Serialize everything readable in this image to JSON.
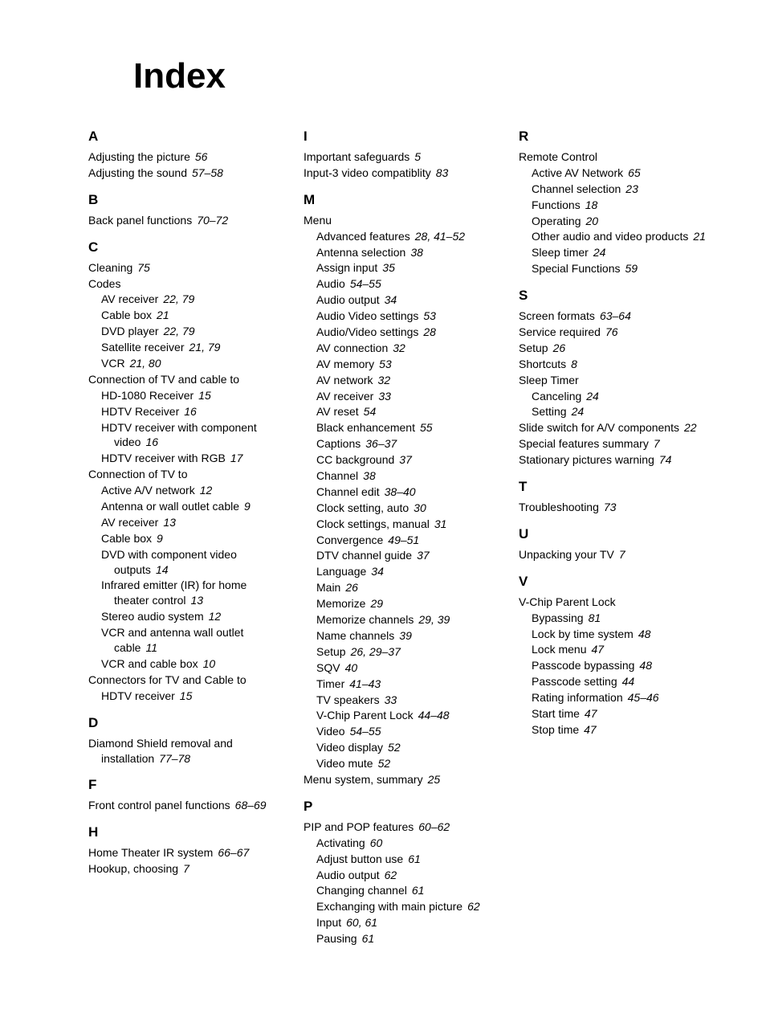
{
  "title": "Index",
  "fontsize_title": 44,
  "fontsize_heading": 17,
  "fontsize_entry": 14,
  "text_color": "#000000",
  "background_color": "#ffffff",
  "columns": [
    {
      "sections": [
        {
          "letter": "A",
          "entries": [
            {
              "level": 0,
              "text": "Adjusting the picture",
              "pages": "56"
            },
            {
              "level": 0,
              "text": "Adjusting the sound",
              "pages": "57–58"
            }
          ]
        },
        {
          "letter": "B",
          "entries": [
            {
              "level": 0,
              "text": "Back panel functions",
              "pages": "70–72"
            }
          ]
        },
        {
          "letter": "C",
          "entries": [
            {
              "level": 0,
              "text": "Cleaning",
              "pages": "75"
            },
            {
              "level": 0,
              "text": "Codes",
              "pages": ""
            },
            {
              "level": 1,
              "text": "AV receiver",
              "pages": "22, 79"
            },
            {
              "level": 1,
              "text": "Cable box",
              "pages": "21"
            },
            {
              "level": 1,
              "text": "DVD player",
              "pages": "22, 79"
            },
            {
              "level": 1,
              "text": "Satellite receiver",
              "pages": "21, 79"
            },
            {
              "level": 1,
              "text": "VCR",
              "pages": "21, 80"
            },
            {
              "level": 0,
              "text": "Connection of TV and cable to",
              "pages": ""
            },
            {
              "level": 1,
              "text": "HD-1080 Receiver",
              "pages": "15"
            },
            {
              "level": 1,
              "text": "HDTV Receiver",
              "pages": "16"
            },
            {
              "level": 1,
              "text": "HDTV receiver with component video",
              "pages": "16"
            },
            {
              "level": 1,
              "text": "HDTV receiver with RGB",
              "pages": "17"
            },
            {
              "level": 0,
              "text": "Connection of TV to",
              "pages": ""
            },
            {
              "level": 1,
              "text": "Active A/V network",
              "pages": "12"
            },
            {
              "level": 1,
              "text": "Antenna or wall outlet cable",
              "pages": "9"
            },
            {
              "level": 1,
              "text": "AV receiver",
              "pages": "13"
            },
            {
              "level": 1,
              "text": "Cable box",
              "pages": "9"
            },
            {
              "level": 1,
              "text": "DVD with component video outputs",
              "pages": "14"
            },
            {
              "level": 1,
              "text": "Infrared emitter (IR) for home theater control",
              "pages": "13"
            },
            {
              "level": 1,
              "text": "Stereo audio system",
              "pages": "12"
            },
            {
              "level": 1,
              "text": "VCR and antenna wall outlet cable",
              "pages": "11"
            },
            {
              "level": 1,
              "text": "VCR and cable box",
              "pages": "10"
            },
            {
              "level": 0,
              "text": "Connectors for TV and Cable to",
              "pages": ""
            },
            {
              "level": 1,
              "text": "HDTV receiver",
              "pages": "15"
            }
          ]
        },
        {
          "letter": "D",
          "entries": [
            {
              "level": 0,
              "text": "Diamond Shield removal and installation",
              "pages": "77–78"
            }
          ]
        },
        {
          "letter": "F",
          "entries": [
            {
              "level": 0,
              "text": "Front control panel functions",
              "pages": "68–69"
            }
          ]
        },
        {
          "letter": "H",
          "entries": [
            {
              "level": 0,
              "text": "Home Theater IR system",
              "pages": "66–67"
            },
            {
              "level": 0,
              "text": "Hookup, choosing",
              "pages": "7"
            }
          ]
        }
      ]
    },
    {
      "sections": [
        {
          "letter": "I",
          "entries": [
            {
              "level": 0,
              "text": "Important safeguards",
              "pages": "5"
            },
            {
              "level": 0,
              "text": "Input-3 video compatiblity",
              "pages": "83"
            }
          ]
        },
        {
          "letter": "M",
          "entries": [
            {
              "level": 0,
              "text": "Menu",
              "pages": ""
            },
            {
              "level": 1,
              "text": "Advanced features",
              "pages": "28, 41–52"
            },
            {
              "level": 1,
              "text": "Antenna selection",
              "pages": "38"
            },
            {
              "level": 1,
              "text": "Assign input",
              "pages": "35"
            },
            {
              "level": 1,
              "text": "Audio",
              "pages": "54–55"
            },
            {
              "level": 1,
              "text": "Audio output",
              "pages": "34"
            },
            {
              "level": 1,
              "text": "Audio Video settings",
              "pages": "53"
            },
            {
              "level": 1,
              "text": "Audio/Video settings",
              "pages": "28"
            },
            {
              "level": 1,
              "text": "AV connection",
              "pages": "32"
            },
            {
              "level": 1,
              "text": "AV memory",
              "pages": "53"
            },
            {
              "level": 1,
              "text": "AV network",
              "pages": "32"
            },
            {
              "level": 1,
              "text": "AV receiver",
              "pages": "33"
            },
            {
              "level": 1,
              "text": "AV reset",
              "pages": "54"
            },
            {
              "level": 1,
              "text": "Black enhancement",
              "pages": "55"
            },
            {
              "level": 1,
              "text": "Captions",
              "pages": "36–37"
            },
            {
              "level": 1,
              "text": "CC background",
              "pages": "37"
            },
            {
              "level": 1,
              "text": "Channel",
              "pages": "38"
            },
            {
              "level": 1,
              "text": "Channel edit",
              "pages": "38–40"
            },
            {
              "level": 1,
              "text": "Clock setting, auto",
              "pages": "30"
            },
            {
              "level": 1,
              "text": "Clock settings, manual",
              "pages": "31"
            },
            {
              "level": 1,
              "text": "Convergence",
              "pages": "49–51"
            },
            {
              "level": 1,
              "text": "DTV channel guide",
              "pages": "37"
            },
            {
              "level": 1,
              "text": "Language",
              "pages": "34"
            },
            {
              "level": 1,
              "text": "Main",
              "pages": "26"
            },
            {
              "level": 1,
              "text": "Memorize",
              "pages": "29"
            },
            {
              "level": 1,
              "text": "Memorize channels",
              "pages": "29, 39"
            },
            {
              "level": 1,
              "text": "Name channels",
              "pages": "39"
            },
            {
              "level": 1,
              "text": "Setup",
              "pages": "26, 29–37"
            },
            {
              "level": 1,
              "text": "SQV",
              "pages": "40"
            },
            {
              "level": 1,
              "text": "Timer",
              "pages": "41–43"
            },
            {
              "level": 1,
              "text": "TV speakers",
              "pages": "33"
            },
            {
              "level": 1,
              "text": "V-Chip Parent Lock",
              "pages": "44–48"
            },
            {
              "level": 1,
              "text": "Video",
              "pages": "54–55"
            },
            {
              "level": 1,
              "text": "Video display",
              "pages": "52"
            },
            {
              "level": 1,
              "text": "Video mute",
              "pages": "52"
            },
            {
              "level": 0,
              "text": "Menu system, summary",
              "pages": "25"
            }
          ]
        },
        {
          "letter": "P",
          "entries": [
            {
              "level": 0,
              "text": "PIP and POP features",
              "pages": "60–62"
            },
            {
              "level": 1,
              "text": "Activating",
              "pages": "60"
            },
            {
              "level": 1,
              "text": "Adjust button use",
              "pages": "61"
            },
            {
              "level": 1,
              "text": "Audio output",
              "pages": "62"
            },
            {
              "level": 1,
              "text": "Changing channel",
              "pages": "61"
            },
            {
              "level": 1,
              "text": "Exchanging with main picture",
              "pages": "62"
            },
            {
              "level": 1,
              "text": "Input",
              "pages": "60, 61"
            },
            {
              "level": 1,
              "text": "Pausing",
              "pages": "61"
            }
          ]
        }
      ]
    },
    {
      "sections": [
        {
          "letter": "R",
          "entries": [
            {
              "level": 0,
              "text": "Remote Control",
              "pages": ""
            },
            {
              "level": 1,
              "text": "Active AV Network",
              "pages": "65"
            },
            {
              "level": 1,
              "text": "Channel selection",
              "pages": "23"
            },
            {
              "level": 1,
              "text": "Functions",
              "pages": "18"
            },
            {
              "level": 1,
              "text": "Operating",
              "pages": "20"
            },
            {
              "level": 1,
              "text": "Other audio and video products",
              "pages": "21"
            },
            {
              "level": 1,
              "text": "Sleep timer",
              "pages": "24"
            },
            {
              "level": 1,
              "text": "Special Functions",
              "pages": "59"
            }
          ]
        },
        {
          "letter": "S",
          "entries": [
            {
              "level": 0,
              "text": "Screen formats",
              "pages": "63–64"
            },
            {
              "level": 0,
              "text": "Service required",
              "pages": "76"
            },
            {
              "level": 0,
              "text": "Setup",
              "pages": "26"
            },
            {
              "level": 0,
              "text": "Shortcuts",
              "pages": "8"
            },
            {
              "level": 0,
              "text": "Sleep Timer",
              "pages": ""
            },
            {
              "level": 1,
              "text": "Canceling",
              "pages": "24"
            },
            {
              "level": 1,
              "text": "Setting",
              "pages": "24"
            },
            {
              "level": 0,
              "text": "Slide switch for A/V components",
              "pages": "22"
            },
            {
              "level": 0,
              "text": "Special features summary",
              "pages": "7"
            },
            {
              "level": 0,
              "text": "Stationary pictures warning",
              "pages": "74"
            }
          ]
        },
        {
          "letter": "T",
          "entries": [
            {
              "level": 0,
              "text": "Troubleshooting",
              "pages": "73"
            }
          ]
        },
        {
          "letter": "U",
          "entries": [
            {
              "level": 0,
              "text": "Unpacking your TV",
              "pages": "7"
            }
          ]
        },
        {
          "letter": "V",
          "entries": [
            {
              "level": 0,
              "text": "V-Chip Parent Lock",
              "pages": ""
            },
            {
              "level": 1,
              "text": "Bypassing",
              "pages": "81"
            },
            {
              "level": 1,
              "text": "Lock by time system",
              "pages": "48"
            },
            {
              "level": 1,
              "text": "Lock menu",
              "pages": "47"
            },
            {
              "level": 1,
              "text": "Passcode bypassing",
              "pages": "48"
            },
            {
              "level": 1,
              "text": "Passcode setting",
              "pages": "44"
            },
            {
              "level": 1,
              "text": "Rating information",
              "pages": "45–46"
            },
            {
              "level": 1,
              "text": "Start time",
              "pages": "47"
            },
            {
              "level": 1,
              "text": "Stop time",
              "pages": "47"
            }
          ]
        }
      ]
    }
  ]
}
